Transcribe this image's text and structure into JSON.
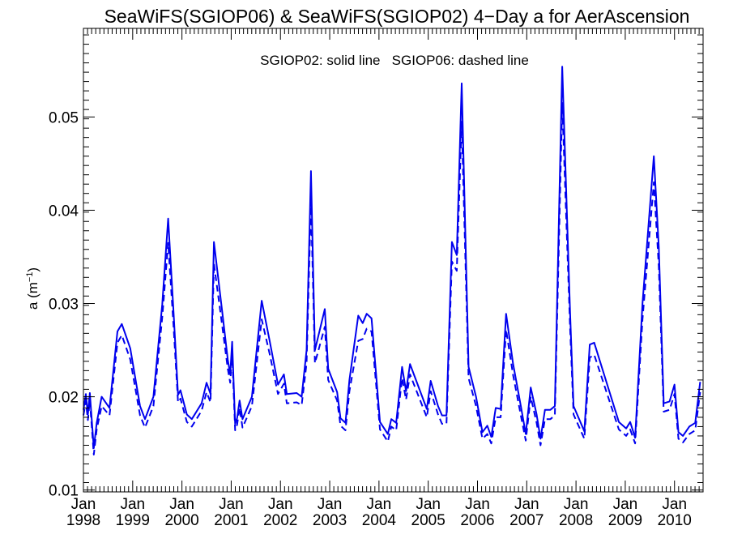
{
  "chart_data": {
    "type": "line",
    "title": "SeaWiFS(SGIOP06) & SeaWiFS(SGIOP02) 4−Day a for AerAscension",
    "subtitle": "SGIOP02: solid line   SGIOP06: dashed line",
    "ylabel_main": "a (m",
    "ylabel_sup": "−1",
    "ylabel_close": ")",
    "xlabel": "",
    "xlim": [
      1998.0,
      2010.58
    ],
    "ylim": [
      0.0098,
      0.0595
    ],
    "yticks": [
      0.01,
      0.02,
      0.03,
      0.04,
      0.05
    ],
    "ytick_labels": [
      "0.01",
      "0.02",
      "0.03",
      "0.04",
      "0.05"
    ],
    "xticks": [
      {
        "x": 1998,
        "month": "Jan",
        "year": "1998"
      },
      {
        "x": 1999,
        "month": "Jan",
        "year": "1999"
      },
      {
        "x": 2000,
        "month": "Jan",
        "year": "2000"
      },
      {
        "x": 2001,
        "month": "Jan",
        "year": "2001"
      },
      {
        "x": 2002,
        "month": "Jan",
        "year": "2002"
      },
      {
        "x": 2003,
        "month": "Jan",
        "year": "2003"
      },
      {
        "x": 2004,
        "month": "Jan",
        "year": "2004"
      },
      {
        "x": 2005,
        "month": "Jan",
        "year": "2005"
      },
      {
        "x": 2006,
        "month": "Jan",
        "year": "2006"
      },
      {
        "x": 2007,
        "month": "Jan",
        "year": "2007"
      },
      {
        "x": 2008,
        "month": "Jan",
        "year": "2008"
      },
      {
        "x": 2009,
        "month": "Jan",
        "year": "2009"
      },
      {
        "x": 2010,
        "month": "Jan",
        "year": "2010"
      }
    ],
    "grid": false,
    "color": "#0000ee",
    "series": [
      {
        "name": "SGIOP02",
        "style": "solid",
        "points": [
          [
            1998.0,
            0.0186
          ],
          [
            1998.05,
            0.0203
          ],
          [
            1998.09,
            0.0181
          ],
          [
            1998.13,
            0.0204
          ],
          [
            1998.21,
            0.0145
          ],
          [
            1998.27,
            0.0172
          ],
          [
            1998.37,
            0.02
          ],
          [
            1998.53,
            0.0188
          ],
          [
            1998.69,
            0.027
          ],
          [
            1998.78,
            0.0278
          ],
          [
            1998.95,
            0.0252
          ],
          [
            1999.15,
            0.019
          ],
          [
            1999.25,
            0.0176
          ],
          [
            1999.42,
            0.02
          ],
          [
            1999.6,
            0.0299
          ],
          [
            1999.72,
            0.0391
          ],
          [
            1999.83,
            0.029
          ],
          [
            1999.92,
            0.0202
          ],
          [
            1999.97,
            0.0207
          ],
          [
            2000.1,
            0.0181
          ],
          [
            2000.2,
            0.0176
          ],
          [
            2000.4,
            0.0193
          ],
          [
            2000.5,
            0.0215
          ],
          [
            2000.58,
            0.0203
          ],
          [
            2000.65,
            0.0366
          ],
          [
            2000.82,
            0.029
          ],
          [
            2000.93,
            0.024
          ],
          [
            2000.98,
            0.0224
          ],
          [
            2001.02,
            0.0259
          ],
          [
            2001.08,
            0.0171
          ],
          [
            2001.12,
            0.0177
          ],
          [
            2001.17,
            0.0196
          ],
          [
            2001.23,
            0.0176
          ],
          [
            2001.42,
            0.02
          ],
          [
            2001.62,
            0.0303
          ],
          [
            2001.78,
            0.026
          ],
          [
            2001.95,
            0.0213
          ],
          [
            2002.07,
            0.0224
          ],
          [
            2002.13,
            0.0203
          ],
          [
            2002.33,
            0.0204
          ],
          [
            2002.43,
            0.02
          ],
          [
            2002.53,
            0.025
          ],
          [
            2002.62,
            0.0442
          ],
          [
            2002.7,
            0.025
          ],
          [
            2002.9,
            0.0294
          ],
          [
            2002.97,
            0.023
          ],
          [
            2003.15,
            0.0205
          ],
          [
            2003.22,
            0.0177
          ],
          [
            2003.32,
            0.0172
          ],
          [
            2003.4,
            0.0218
          ],
          [
            2003.58,
            0.0287
          ],
          [
            2003.67,
            0.0279
          ],
          [
            2003.75,
            0.0289
          ],
          [
            2003.85,
            0.0284
          ],
          [
            2004.02,
            0.0173
          ],
          [
            2004.18,
            0.016
          ],
          [
            2004.25,
            0.0176
          ],
          [
            2004.35,
            0.0172
          ],
          [
            2004.47,
            0.0232
          ],
          [
            2004.55,
            0.0206
          ],
          [
            2004.63,
            0.0235
          ],
          [
            2004.97,
            0.0187
          ],
          [
            2005.05,
            0.0217
          ],
          [
            2005.2,
            0.019
          ],
          [
            2005.28,
            0.018
          ],
          [
            2005.37,
            0.018
          ],
          [
            2005.48,
            0.0366
          ],
          [
            2005.58,
            0.0352
          ],
          [
            2005.68,
            0.0536
          ],
          [
            2005.82,
            0.0232
          ],
          [
            2005.97,
            0.02
          ],
          [
            2006.1,
            0.0162
          ],
          [
            2006.2,
            0.0169
          ],
          [
            2006.28,
            0.0157
          ],
          [
            2006.37,
            0.0188
          ],
          [
            2006.47,
            0.0187
          ],
          [
            2006.58,
            0.0289
          ],
          [
            2006.72,
            0.0236
          ],
          [
            2006.88,
            0.019
          ],
          [
            2006.98,
            0.016
          ],
          [
            2007.08,
            0.021
          ],
          [
            2007.2,
            0.0181
          ],
          [
            2007.28,
            0.0155
          ],
          [
            2007.37,
            0.0186
          ],
          [
            2007.48,
            0.0186
          ],
          [
            2007.57,
            0.019
          ],
          [
            2007.72,
            0.0554
          ],
          [
            2007.88,
            0.029
          ],
          [
            2007.95,
            0.019
          ],
          [
            2008.17,
            0.0163
          ],
          [
            2008.28,
            0.0256
          ],
          [
            2008.37,
            0.0258
          ],
          [
            2008.87,
            0.0173
          ],
          [
            2009.02,
            0.0166
          ],
          [
            2009.1,
            0.0173
          ],
          [
            2009.2,
            0.0156
          ],
          [
            2009.35,
            0.03
          ],
          [
            2009.58,
            0.0458
          ],
          [
            2009.68,
            0.0361
          ],
          [
            2009.78,
            0.0193
          ],
          [
            2009.9,
            0.0195
          ],
          [
            2010.0,
            0.0213
          ],
          [
            2010.08,
            0.0162
          ],
          [
            2010.17,
            0.0158
          ],
          [
            2010.3,
            0.0168
          ],
          [
            2010.42,
            0.0172
          ],
          [
            2010.52,
            0.0216
          ]
        ]
      },
      {
        "name": "SGIOP06",
        "style": "dashed",
        "points": [
          [
            1998.0,
            0.018
          ],
          [
            1998.05,
            0.0195
          ],
          [
            1998.09,
            0.0175
          ],
          [
            1998.13,
            0.0196
          ],
          [
            1998.21,
            0.0138
          ],
          [
            1998.27,
            0.0165
          ],
          [
            1998.37,
            0.019
          ],
          [
            1998.53,
            0.018
          ],
          [
            1998.69,
            0.0258
          ],
          [
            1998.78,
            0.0266
          ],
          [
            1998.95,
            0.024
          ],
          [
            1999.15,
            0.018
          ],
          [
            1999.25,
            0.0167
          ],
          [
            1999.42,
            0.019
          ],
          [
            1999.6,
            0.0285
          ],
          [
            1999.72,
            0.0365
          ],
          [
            1999.83,
            0.0275
          ],
          [
            1999.92,
            0.0194
          ],
          [
            1999.97,
            0.0198
          ],
          [
            2000.1,
            0.0173
          ],
          [
            2000.2,
            0.0168
          ],
          [
            2000.4,
            0.0185
          ],
          [
            2000.5,
            0.0205
          ],
          [
            2000.58,
            0.0194
          ],
          [
            2000.65,
            0.0343
          ],
          [
            2000.82,
            0.0275
          ],
          [
            2000.93,
            0.023
          ],
          [
            2000.98,
            0.0215
          ],
          [
            2001.02,
            0.0247
          ],
          [
            2001.08,
            0.0164
          ],
          [
            2001.12,
            0.017
          ],
          [
            2001.17,
            0.0188
          ],
          [
            2001.23,
            0.0167
          ],
          [
            2001.42,
            0.019
          ],
          [
            2001.62,
            0.0283
          ],
          [
            2001.78,
            0.0246
          ],
          [
            2001.95,
            0.0203
          ],
          [
            2002.07,
            0.0214
          ],
          [
            2002.13,
            0.0193
          ],
          [
            2002.33,
            0.0194
          ],
          [
            2002.43,
            0.0191
          ],
          [
            2002.53,
            0.0236
          ],
          [
            2002.62,
            0.041
          ],
          [
            2002.7,
            0.0236
          ],
          [
            2002.9,
            0.0275
          ],
          [
            2002.97,
            0.0218
          ],
          [
            2003.15,
            0.0196
          ],
          [
            2003.22,
            0.0169
          ],
          [
            2003.32,
            0.0164
          ],
          [
            2003.4,
            0.0206
          ],
          [
            2003.58,
            0.026
          ],
          [
            2003.67,
            0.0262
          ],
          [
            2003.75,
            0.0273
          ],
          [
            2003.85,
            0.027
          ],
          [
            2004.02,
            0.0165
          ],
          [
            2004.18,
            0.0152
          ],
          [
            2004.25,
            0.0168
          ],
          [
            2004.35,
            0.0164
          ],
          [
            2004.47,
            0.022
          ],
          [
            2004.55,
            0.0197
          ],
          [
            2004.63,
            0.0224
          ],
          [
            2004.97,
            0.0178
          ],
          [
            2005.05,
            0.0206
          ],
          [
            2005.2,
            0.0181
          ],
          [
            2005.28,
            0.0171
          ],
          [
            2005.37,
            0.0171
          ],
          [
            2005.48,
            0.0345
          ],
          [
            2005.58,
            0.0335
          ],
          [
            2005.68,
            0.0495
          ],
          [
            2005.82,
            0.022
          ],
          [
            2005.97,
            0.019
          ],
          [
            2006.1,
            0.0155
          ],
          [
            2006.2,
            0.016
          ],
          [
            2006.28,
            0.015
          ],
          [
            2006.37,
            0.0178
          ],
          [
            2006.47,
            0.0178
          ],
          [
            2006.58,
            0.0272
          ],
          [
            2006.72,
            0.0224
          ],
          [
            2006.88,
            0.018
          ],
          [
            2006.98,
            0.0153
          ],
          [
            2007.08,
            0.02
          ],
          [
            2007.2,
            0.0172
          ],
          [
            2007.28,
            0.0148
          ],
          [
            2007.37,
            0.0176
          ],
          [
            2007.48,
            0.0176
          ],
          [
            2007.57,
            0.018
          ],
          [
            2007.72,
            0.0515
          ],
          [
            2007.88,
            0.0274
          ],
          [
            2007.95,
            0.0181
          ],
          [
            2008.17,
            0.0155
          ],
          [
            2008.28,
            0.0242
          ],
          [
            2008.37,
            0.0245
          ],
          [
            2008.87,
            0.0165
          ],
          [
            2009.02,
            0.0158
          ],
          [
            2009.1,
            0.0165
          ],
          [
            2009.2,
            0.015
          ],
          [
            2009.35,
            0.0283
          ],
          [
            2009.58,
            0.043
          ],
          [
            2009.68,
            0.034
          ],
          [
            2009.78,
            0.0184
          ],
          [
            2009.9,
            0.0186
          ],
          [
            2010.0,
            0.0203
          ],
          [
            2010.08,
            0.0155
          ],
          [
            2010.17,
            0.0151
          ],
          [
            2010.3,
            0.016
          ],
          [
            2010.42,
            0.0164
          ],
          [
            2010.52,
            0.0205
          ]
        ]
      }
    ]
  }
}
